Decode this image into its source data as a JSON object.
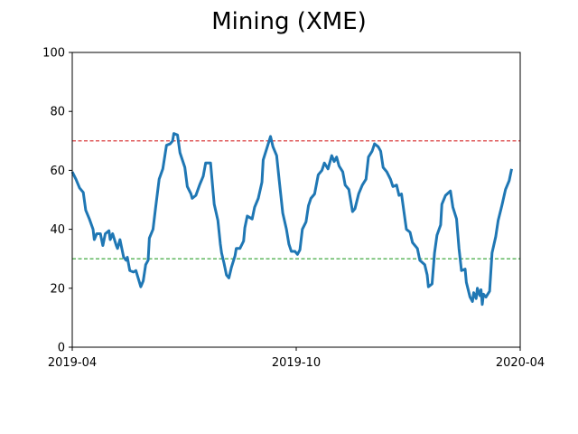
{
  "chart_data": {
    "type": "line",
    "title": "Mining (XME)",
    "xlabel": "",
    "ylabel": "",
    "ylim": [
      0,
      100
    ],
    "yticks": [
      0,
      20,
      40,
      60,
      80,
      100
    ],
    "xlim": [
      "2019-04-01",
      "2020-04-01"
    ],
    "xticks": [
      {
        "date": "2019-04-01",
        "label": "2019-04"
      },
      {
        "date": "2019-10-01",
        "label": "2019-10"
      },
      {
        "date": "2020-04-01",
        "label": "2020-04"
      }
    ],
    "grid": false,
    "legend": "none",
    "reference_lines": [
      {
        "value": 70,
        "color": "#d62728",
        "style": "dashed"
      },
      {
        "value": 30,
        "color": "#2ca02c",
        "style": "dashed"
      }
    ],
    "series": [
      {
        "color": "#1f77b4",
        "points": [
          [
            "2019-04-01",
            59.5
          ],
          [
            "2019-04-04",
            57.0
          ],
          [
            "2019-04-07",
            54.0
          ],
          [
            "2019-04-10",
            52.5
          ],
          [
            "2019-04-12",
            46.5
          ],
          [
            "2019-04-15",
            43.5
          ],
          [
            "2019-04-18",
            40.0
          ],
          [
            "2019-04-19",
            36.5
          ],
          [
            "2019-04-21",
            38.5
          ],
          [
            "2019-04-24",
            38.5
          ],
          [
            "2019-04-26",
            34.5
          ],
          [
            "2019-04-28",
            38.5
          ],
          [
            "2019-05-01",
            39.5
          ],
          [
            "2019-05-02",
            36.5
          ],
          [
            "2019-05-04",
            38.5
          ],
          [
            "2019-05-07",
            34.5
          ],
          [
            "2019-05-08",
            33.5
          ],
          [
            "2019-05-10",
            36.5
          ],
          [
            "2019-05-13",
            30.5
          ],
          [
            "2019-05-15",
            29.5
          ],
          [
            "2019-05-16",
            30.5
          ],
          [
            "2019-05-18",
            26.0
          ],
          [
            "2019-05-21",
            25.5
          ],
          [
            "2019-05-23",
            26.0
          ],
          [
            "2019-05-27",
            20.5
          ],
          [
            "2019-05-29",
            22.5
          ],
          [
            "2019-05-31",
            28.0
          ],
          [
            "2019-06-02",
            29.5
          ],
          [
            "2019-06-03",
            37.0
          ],
          [
            "2019-06-06",
            40.0
          ],
          [
            "2019-06-08",
            47.0
          ],
          [
            "2019-06-11",
            57.0
          ],
          [
            "2019-06-14",
            60.5
          ],
          [
            "2019-06-17",
            68.5
          ],
          [
            "2019-06-20",
            69.0
          ],
          [
            "2019-06-22",
            70.0
          ],
          [
            "2019-06-23",
            72.5
          ],
          [
            "2019-06-26",
            72.0
          ],
          [
            "2019-06-28",
            66.0
          ],
          [
            "2019-07-02",
            61.0
          ],
          [
            "2019-07-04",
            54.5
          ],
          [
            "2019-07-07",
            52.0
          ],
          [
            "2019-07-08",
            50.5
          ],
          [
            "2019-07-11",
            51.5
          ],
          [
            "2019-07-14",
            55.0
          ],
          [
            "2019-07-17",
            58.0
          ],
          [
            "2019-07-19",
            62.5
          ],
          [
            "2019-07-23",
            62.5
          ],
          [
            "2019-07-26",
            48.5
          ],
          [
            "2019-07-29",
            43.0
          ],
          [
            "2019-07-31",
            35.0
          ],
          [
            "2019-08-01",
            32.0
          ],
          [
            "2019-08-03",
            28.5
          ],
          [
            "2019-08-05",
            24.5
          ],
          [
            "2019-08-07",
            23.5
          ],
          [
            "2019-08-09",
            27.0
          ],
          [
            "2019-08-12",
            31.0
          ],
          [
            "2019-08-13",
            33.5
          ],
          [
            "2019-08-16",
            33.5
          ],
          [
            "2019-08-19",
            36.0
          ],
          [
            "2019-08-20",
            40.5
          ],
          [
            "2019-08-22",
            44.5
          ],
          [
            "2019-08-26",
            43.5
          ],
          [
            "2019-08-28",
            47.5
          ],
          [
            "2019-08-31",
            50.5
          ],
          [
            "2019-09-03",
            56.0
          ],
          [
            "2019-09-04",
            63.5
          ],
          [
            "2019-09-07",
            67.5
          ],
          [
            "2019-09-10",
            71.5
          ],
          [
            "2019-09-12",
            68.0
          ],
          [
            "2019-09-15",
            65.0
          ],
          [
            "2019-09-17",
            57.0
          ],
          [
            "2019-09-20",
            45.5
          ],
          [
            "2019-09-23",
            40.0
          ],
          [
            "2019-09-25",
            35.0
          ],
          [
            "2019-09-27",
            32.5
          ],
          [
            "2019-09-30",
            32.5
          ],
          [
            "2019-10-02",
            31.5
          ],
          [
            "2019-10-04",
            33.0
          ],
          [
            "2019-10-06",
            40.0
          ],
          [
            "2019-10-09",
            42.5
          ],
          [
            "2019-10-11",
            48.0
          ],
          [
            "2019-10-13",
            50.5
          ],
          [
            "2019-10-16",
            52.0
          ],
          [
            "2019-10-19",
            58.5
          ],
          [
            "2019-10-22",
            60.0
          ],
          [
            "2019-10-24",
            62.5
          ],
          [
            "2019-10-27",
            60.5
          ],
          [
            "2019-10-30",
            65.0
          ],
          [
            "2019-11-01",
            63.0
          ],
          [
            "2019-11-03",
            64.5
          ],
          [
            "2019-11-05",
            61.5
          ],
          [
            "2019-11-08",
            59.5
          ],
          [
            "2019-11-10",
            55.0
          ],
          [
            "2019-11-13",
            53.5
          ],
          [
            "2019-11-16",
            46.0
          ],
          [
            "2019-11-18",
            47.0
          ],
          [
            "2019-11-21",
            52.0
          ],
          [
            "2019-11-24",
            55.0
          ],
          [
            "2019-11-27",
            57.0
          ],
          [
            "2019-11-29",
            64.5
          ],
          [
            "2019-12-02",
            66.5
          ],
          [
            "2019-12-04",
            69.0
          ],
          [
            "2019-12-07",
            68.0
          ],
          [
            "2019-12-09",
            66.5
          ],
          [
            "2019-12-11",
            61.0
          ],
          [
            "2019-12-14",
            59.5
          ],
          [
            "2019-12-17",
            57.0
          ],
          [
            "2019-12-19",
            54.5
          ],
          [
            "2019-12-22",
            55.0
          ],
          [
            "2019-12-24",
            51.5
          ],
          [
            "2019-12-26",
            52.0
          ],
          [
            "2019-12-28",
            46.0
          ],
          [
            "2019-12-30",
            40.0
          ],
          [
            "2020-01-02",
            39.0
          ],
          [
            "2020-01-04",
            35.5
          ],
          [
            "2020-01-08",
            33.5
          ],
          [
            "2020-01-10",
            29.5
          ],
          [
            "2020-01-14",
            28.0
          ],
          [
            "2020-01-16",
            24.5
          ],
          [
            "2020-01-17",
            20.5
          ],
          [
            "2020-01-20",
            21.5
          ],
          [
            "2020-01-22",
            32.0
          ],
          [
            "2020-01-24",
            38.0
          ],
          [
            "2020-01-27",
            41.5
          ],
          [
            "2020-01-28",
            48.5
          ],
          [
            "2020-01-31",
            51.5
          ],
          [
            "2020-02-04",
            53.0
          ],
          [
            "2020-02-06",
            47.5
          ],
          [
            "2020-02-09",
            43.5
          ],
          [
            "2020-02-11",
            33.5
          ],
          [
            "2020-02-13",
            26.0
          ],
          [
            "2020-02-16",
            26.5
          ],
          [
            "2020-02-17",
            22.0
          ],
          [
            "2020-02-20",
            17.0
          ],
          [
            "2020-02-22",
            15.5
          ],
          [
            "2020-02-23",
            18.5
          ],
          [
            "2020-02-25",
            16.5
          ],
          [
            "2020-02-26",
            20.0
          ],
          [
            "2020-02-28",
            17.5
          ],
          [
            "2020-02-29",
            19.5
          ],
          [
            "2020-03-01",
            14.5
          ],
          [
            "2020-03-02",
            18.0
          ],
          [
            "2020-03-04",
            17.0
          ],
          [
            "2020-03-07",
            19.0
          ],
          [
            "2020-03-09",
            32.0
          ],
          [
            "2020-03-12",
            37.5
          ],
          [
            "2020-03-14",
            43.0
          ],
          [
            "2020-03-17",
            48.0
          ],
          [
            "2020-03-20",
            53.5
          ],
          [
            "2020-03-23",
            56.5
          ],
          [
            "2020-03-25",
            60.5
          ]
        ]
      }
    ]
  }
}
